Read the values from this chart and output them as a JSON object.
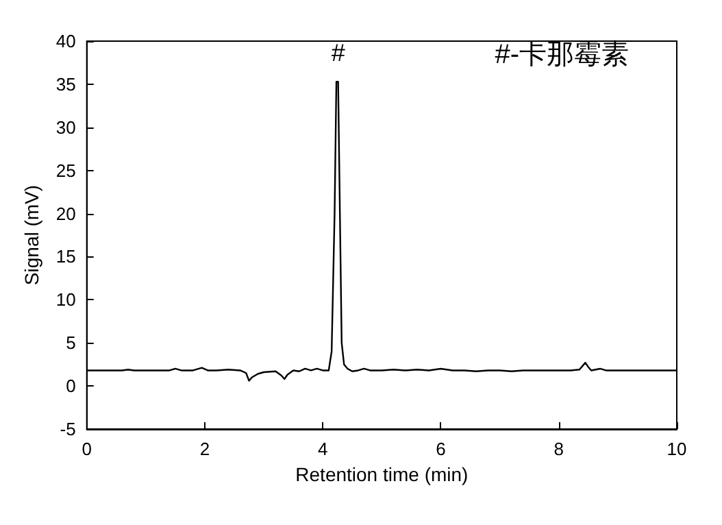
{
  "chart_data": {
    "type": "line",
    "xlabel": "Retention time (min)",
    "ylabel": "Signal (mV)",
    "xlim": [
      0,
      10
    ],
    "xticks": [
      0,
      2,
      4,
      6,
      8,
      10
    ],
    "ylim": [
      -5,
      40
    ],
    "yticks": [
      -5,
      0,
      5,
      10,
      15,
      20,
      25,
      30,
      35,
      40
    ],
    "grid": false,
    "marker": "none",
    "line_style": "solid",
    "annotations": [
      {
        "text": "#",
        "x": 4.26,
        "y": 35.3
      },
      "#-卡那霉素"
    ],
    "series": [
      {
        "color": "#000000",
        "x": [
          0,
          0.3,
          0.6,
          0.7,
          0.8,
          1.0,
          1.2,
          1.4,
          1.5,
          1.6,
          1.8,
          1.95,
          2.05,
          2.2,
          2.4,
          2.6,
          2.7,
          2.75,
          2.8,
          2.9,
          3.0,
          3.2,
          3.3,
          3.35,
          3.4,
          3.5,
          3.6,
          3.7,
          3.8,
          3.9,
          4.0,
          4.1,
          4.15,
          4.2,
          4.23,
          4.26,
          4.29,
          4.32,
          4.36,
          4.42,
          4.5,
          4.6,
          4.7,
          4.8,
          5.0,
          5.2,
          5.4,
          5.6,
          5.8,
          6.0,
          6.2,
          6.4,
          6.6,
          6.8,
          7.0,
          7.2,
          7.4,
          7.6,
          7.8,
          8.0,
          8.2,
          8.35,
          8.45,
          8.5,
          8.55,
          8.7,
          8.8,
          8.9,
          9.0,
          9.2,
          9.4,
          9.6,
          9.8,
          10
        ],
        "values": [
          1.8,
          1.8,
          1.8,
          1.9,
          1.8,
          1.8,
          1.8,
          1.8,
          2.0,
          1.8,
          1.8,
          2.1,
          1.8,
          1.8,
          1.9,
          1.8,
          1.5,
          0.6,
          1.0,
          1.4,
          1.6,
          1.7,
          1.2,
          0.8,
          1.3,
          1.8,
          1.7,
          2.0,
          1.8,
          2.0,
          1.8,
          1.8,
          4.0,
          20,
          35.3,
          35.3,
          20,
          5.0,
          2.5,
          2.0,
          1.7,
          1.8,
          2.0,
          1.8,
          1.8,
          1.9,
          1.8,
          1.9,
          1.8,
          2.0,
          1.8,
          1.8,
          1.7,
          1.8,
          1.8,
          1.7,
          1.8,
          1.8,
          1.8,
          1.8,
          1.8,
          1.9,
          2.7,
          2.2,
          1.8,
          2.0,
          1.8,
          1.8,
          1.8,
          1.8,
          1.8,
          1.8,
          1.8,
          1.8
        ]
      }
    ]
  }
}
